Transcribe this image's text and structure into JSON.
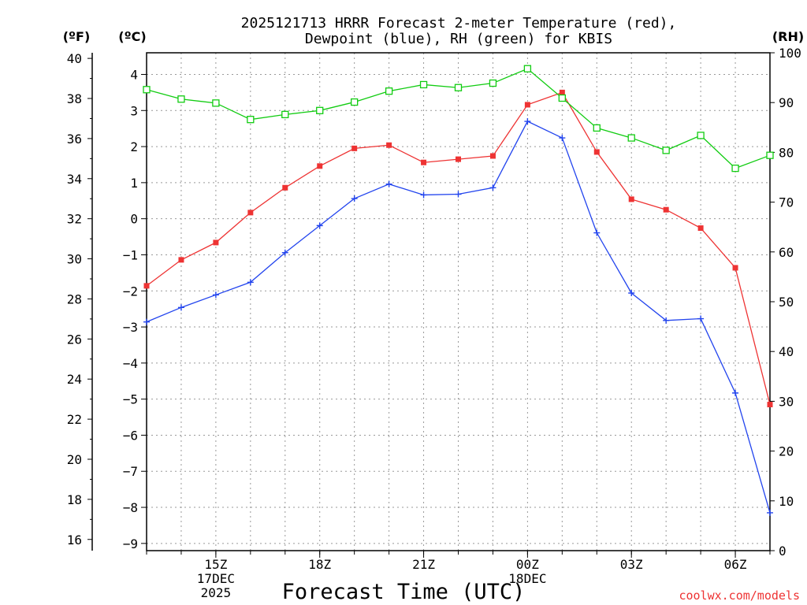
{
  "chart_data": {
    "type": "line",
    "title_line1": "2025121713 HRRR Forecast 2-meter Temperature (red),",
    "title_line2": "Dewpoint (blue), RH (green) for KBIS",
    "left_outer_unit": "(ºF)",
    "left_inner_unit": "(ºC)",
    "right_unit": "(RH)",
    "xlabel": "Forecast Time (UTC)",
    "credit": "coolwx.com/models",
    "x_hours": [
      13,
      14,
      15,
      16,
      17,
      18,
      19,
      20,
      21,
      22,
      23,
      24,
      25,
      26,
      27,
      28,
      29,
      30,
      31
    ],
    "x_ticks": [
      {
        "hour": 15,
        "lines": [
          "15Z",
          "17DEC",
          "2025"
        ]
      },
      {
        "hour": 18,
        "lines": [
          "18Z"
        ]
      },
      {
        "hour": 21,
        "lines": [
          "21Z"
        ]
      },
      {
        "hour": 24,
        "lines": [
          "00Z",
          "18DEC"
        ]
      },
      {
        "hour": 27,
        "lines": [
          "03Z"
        ]
      },
      {
        "hour": 30,
        "lines": [
          "06Z"
        ]
      }
    ],
    "ylim_c": [
      -9.2,
      4.6
    ],
    "ylim_f": [
      15.44,
      40.28
    ],
    "ylim_rh": [
      0,
      100
    ],
    "yticks_c": [
      -9,
      -8,
      -7,
      -6,
      -5,
      -4,
      -3,
      -2,
      -1,
      0,
      1,
      2,
      3,
      4
    ],
    "yticks_f": [
      16,
      18,
      20,
      22,
      24,
      26,
      28,
      30,
      32,
      34,
      36,
      38,
      40
    ],
    "yticks_rh": [
      0,
      10,
      20,
      30,
      40,
      50,
      60,
      70,
      80,
      90,
      100
    ],
    "series": [
      {
        "name": "Temperature",
        "unit": "C",
        "color": "#ee3333",
        "marker": "filled-square",
        "values": [
          -1.86,
          -1.14,
          -0.66,
          0.17,
          0.86,
          1.46,
          1.95,
          2.04,
          1.56,
          1.65,
          1.74,
          3.16,
          3.5,
          1.85,
          0.54,
          0.25,
          -0.26,
          -1.36,
          -5.15
        ]
      },
      {
        "name": "Dewpoint",
        "unit": "C",
        "color": "#2244ee",
        "marker": "plus",
        "values": [
          -2.86,
          -2.46,
          -2.11,
          -1.76,
          -0.94,
          -0.19,
          0.56,
          0.96,
          0.66,
          0.68,
          0.86,
          2.7,
          2.24,
          -0.39,
          -2.06,
          -2.82,
          -2.77,
          -4.83,
          -8.15
        ]
      },
      {
        "name": "RH",
        "unit": "%",
        "color": "#11cc11",
        "marker": "open-square",
        "values": [
          92.6,
          90.7,
          89.9,
          86.6,
          87.6,
          88.4,
          90.1,
          92.3,
          93.6,
          93.0,
          93.9,
          96.8,
          90.9,
          84.9,
          82.9,
          80.4,
          83.4,
          76.8,
          79.4
        ]
      }
    ]
  }
}
